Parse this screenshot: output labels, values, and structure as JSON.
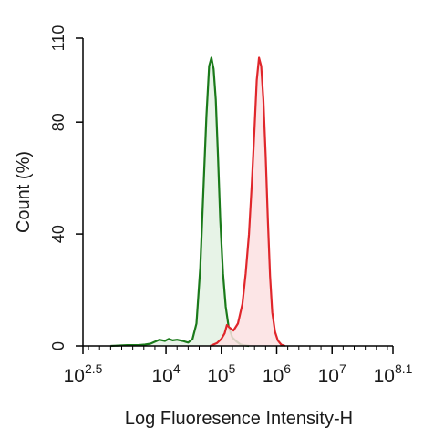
{
  "chart_data": {
    "type": "area",
    "xlabel": "Log Fluoresence Intensity-H",
    "ylabel": "Count  (%)",
    "xscale": "log",
    "xlim": [
      2.5,
      8.1
    ],
    "ylim": [
      0,
      110
    ],
    "grid": false,
    "legend": "none",
    "x_ticks": [
      {
        "value": 2.5,
        "base": "10",
        "exp": "2.5"
      },
      {
        "value": 4,
        "base": "10",
        "exp": "4"
      },
      {
        "value": 5,
        "base": "10",
        "exp": "5"
      },
      {
        "value": 6,
        "base": "10",
        "exp": "6"
      },
      {
        "value": 7,
        "base": "10",
        "exp": "7"
      },
      {
        "value": 8.1,
        "base": "10",
        "exp": "8.1"
      }
    ],
    "y_ticks": [
      {
        "value": 0,
        "label": "0"
      },
      {
        "value": 40,
        "label": "40"
      },
      {
        "value": 80,
        "label": "80"
      },
      {
        "value": 110,
        "label": "110"
      }
    ],
    "series": [
      {
        "color": "#1a7a1a",
        "fill": "#e3f1e3",
        "log_x": [
          3.0,
          3.3,
          3.5,
          3.62,
          3.72,
          3.8,
          3.88,
          3.98,
          4.05,
          4.12,
          4.2,
          4.3,
          4.4,
          4.48,
          4.55,
          4.62,
          4.68,
          4.73,
          4.78,
          4.82,
          4.86,
          4.9,
          4.94,
          4.98,
          5.03,
          5.08,
          5.13,
          5.2,
          5.28,
          5.35,
          5.42,
          5.5
        ],
        "y": [
          0,
          0.3,
          0.3,
          0.5,
          0.8,
          1.5,
          2.2,
          1.8,
          2.5,
          2.0,
          2.2,
          1.8,
          1.2,
          2.5,
          8,
          28,
          58,
          82,
          100,
          103,
          99,
          88,
          68,
          45,
          26,
          14,
          7,
          3,
          1.5,
          0.5,
          0.2,
          0
        ]
      },
      {
        "color": "#e0262b",
        "fill": "#fbe1e2",
        "log_x": [
          4.8,
          4.92,
          5.0,
          5.06,
          5.1,
          5.15,
          5.22,
          5.3,
          5.38,
          5.44,
          5.5,
          5.55,
          5.6,
          5.64,
          5.68,
          5.72,
          5.76,
          5.8,
          5.84,
          5.88,
          5.92,
          5.97,
          6.02,
          6.08,
          6.15
        ],
        "y": [
          0,
          1.0,
          2.5,
          4.5,
          7.5,
          6.5,
          5.5,
          8,
          15,
          26,
          40,
          58,
          78,
          95,
          103,
          100,
          88,
          68,
          45,
          25,
          12,
          5,
          2,
          0.5,
          0
        ]
      }
    ]
  }
}
